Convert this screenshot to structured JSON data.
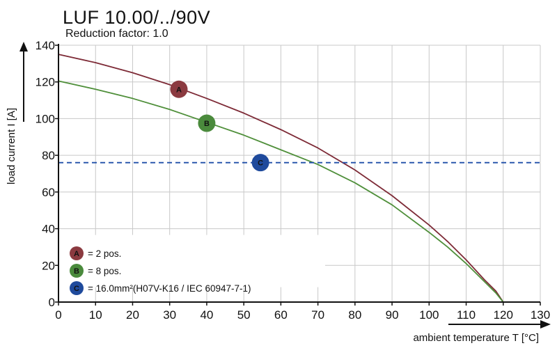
{
  "chart_data": {
    "type": "line",
    "title": "LUF 10.00/../90V",
    "subtitle": "Reduction factor: 1.0",
    "xlabel": "ambient temperature T [°C]",
    "ylabel": "load current I [A]",
    "xlim": [
      0,
      130
    ],
    "ylim": [
      0,
      140
    ],
    "x_ticks": [
      0,
      10,
      20,
      30,
      40,
      50,
      60,
      70,
      80,
      90,
      100,
      110,
      120,
      130
    ],
    "y_ticks": [
      0,
      20,
      40,
      60,
      80,
      100,
      120,
      140
    ],
    "grid": true,
    "series": [
      {
        "name": "= 2 pos.",
        "marker": "A",
        "color": "#7d2a36",
        "fill": "#8b3a40",
        "x": [
          0,
          10,
          20,
          30,
          40,
          50,
          60,
          70,
          80,
          90,
          100,
          105,
          110,
          115,
          118,
          120
        ],
        "y": [
          135,
          130.5,
          125,
          118.5,
          111,
          103,
          94,
          84,
          72,
          58,
          42,
          33,
          23,
          12,
          6,
          0
        ]
      },
      {
        "name": "= 8 pos.",
        "marker": "B",
        "color": "#4f8f3a",
        "fill": "#4a8a3c",
        "x": [
          0,
          10,
          20,
          30,
          40,
          50,
          60,
          70,
          80,
          90,
          100,
          105,
          110,
          115,
          118,
          120
        ],
        "y": [
          120.5,
          116,
          111,
          105,
          98,
          91,
          83,
          75,
          65,
          53,
          38,
          30,
          21,
          11,
          5,
          0
        ]
      },
      {
        "name": "= 16.0mm²(H07V-K16 / IEC 60947-7-1)",
        "marker": "C",
        "color": "#1f4ea8",
        "fill": "#1f4a9c",
        "x": [
          0,
          130
        ],
        "y": [
          76,
          76
        ],
        "style": "dashed"
      }
    ],
    "point_markers": [
      {
        "label": "A",
        "x": 32.5,
        "y": 116
      },
      {
        "label": "B",
        "x": 40,
        "y": 97.5
      },
      {
        "label": "C",
        "x": 54.5,
        "y": 76
      }
    ],
    "legend": {
      "placement": "bottom-left",
      "entries": [
        {
          "marker": "A",
          "text": "= 2 pos."
        },
        {
          "marker": "B",
          "text": "= 8 pos."
        },
        {
          "marker": "C",
          "text": "= 16.0mm²(H07V-K16 / IEC 60947-7-1)"
        }
      ]
    }
  }
}
